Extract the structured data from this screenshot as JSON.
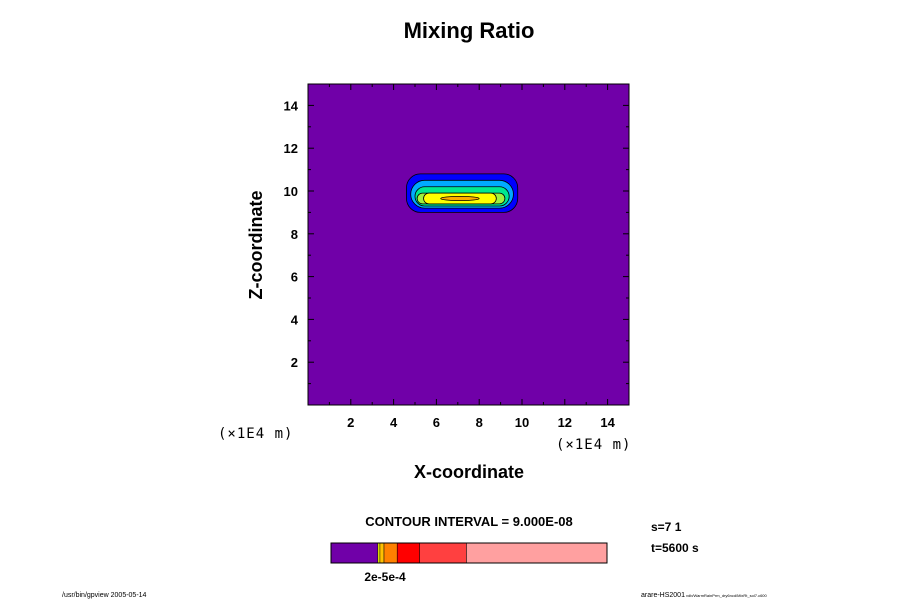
{
  "chart_data": {
    "type": "heatmap",
    "title": "Mixing Ratio",
    "xlabel": "X-coordinate",
    "ylabel": "Z-coordinate",
    "x_unit": "(×1E4 m)",
    "y_unit": "(×1E4 m)",
    "xlim": [
      0,
      15
    ],
    "ylim": [
      0,
      15
    ],
    "xticks": [
      2,
      4,
      6,
      8,
      10,
      12,
      14
    ],
    "yticks": [
      2,
      4,
      6,
      8,
      10,
      12,
      14
    ],
    "background_color": "#7000A8",
    "contour_interval": "CONTOUR INTERVAL = 9.000E-08",
    "region": {
      "x_range": [
        4.6,
        9.8
      ],
      "z_range": [
        8.9,
        10.8
      ],
      "levels": [
        {
          "color": "#0000FF",
          "x_range": [
            4.6,
            9.8
          ],
          "z_range": [
            9.0,
            10.8
          ]
        },
        {
          "color": "#00AAFF",
          "x_range": [
            4.8,
            9.6
          ],
          "z_range": [
            9.2,
            10.5
          ]
        },
        {
          "color": "#00E890",
          "x_range": [
            5.0,
            9.4
          ],
          "z_range": [
            9.3,
            10.2
          ]
        },
        {
          "color": "#A0F040",
          "x_range": [
            5.1,
            9.2
          ],
          "z_range": [
            9.4,
            9.9
          ]
        },
        {
          "color": "#FFFF00",
          "x_range": [
            5.4,
            8.8
          ],
          "z_range": [
            9.4,
            9.9
          ]
        },
        {
          "color": "#FFAA00",
          "x_range": [
            6.2,
            8.0
          ],
          "z_range": [
            9.55,
            9.75
          ]
        }
      ]
    },
    "colorbar": {
      "segments": [
        {
          "color": "#7000A8",
          "weight": 46
        },
        {
          "color": "#FFFF00",
          "weight": 2
        },
        {
          "color": "#FFC000",
          "weight": 4
        },
        {
          "color": "#FF8000",
          "weight": 13
        },
        {
          "color": "#FF0000",
          "weight": 22
        },
        {
          "color": "#FF4040",
          "weight": 46
        },
        {
          "color": "#FFA0A0",
          "weight": 138
        }
      ],
      "tick_label": "2e-5e-4"
    }
  },
  "info": {
    "step": "s=7 1",
    "time": "t=5600 s"
  },
  "footer": {
    "left": "/usr/bin/gpview 2005-05-14",
    "right_main": "arare-HS2001",
    "right_small": "vdb/WarmRainPrm_dry6ncd/MixRt_sol7.c600"
  }
}
